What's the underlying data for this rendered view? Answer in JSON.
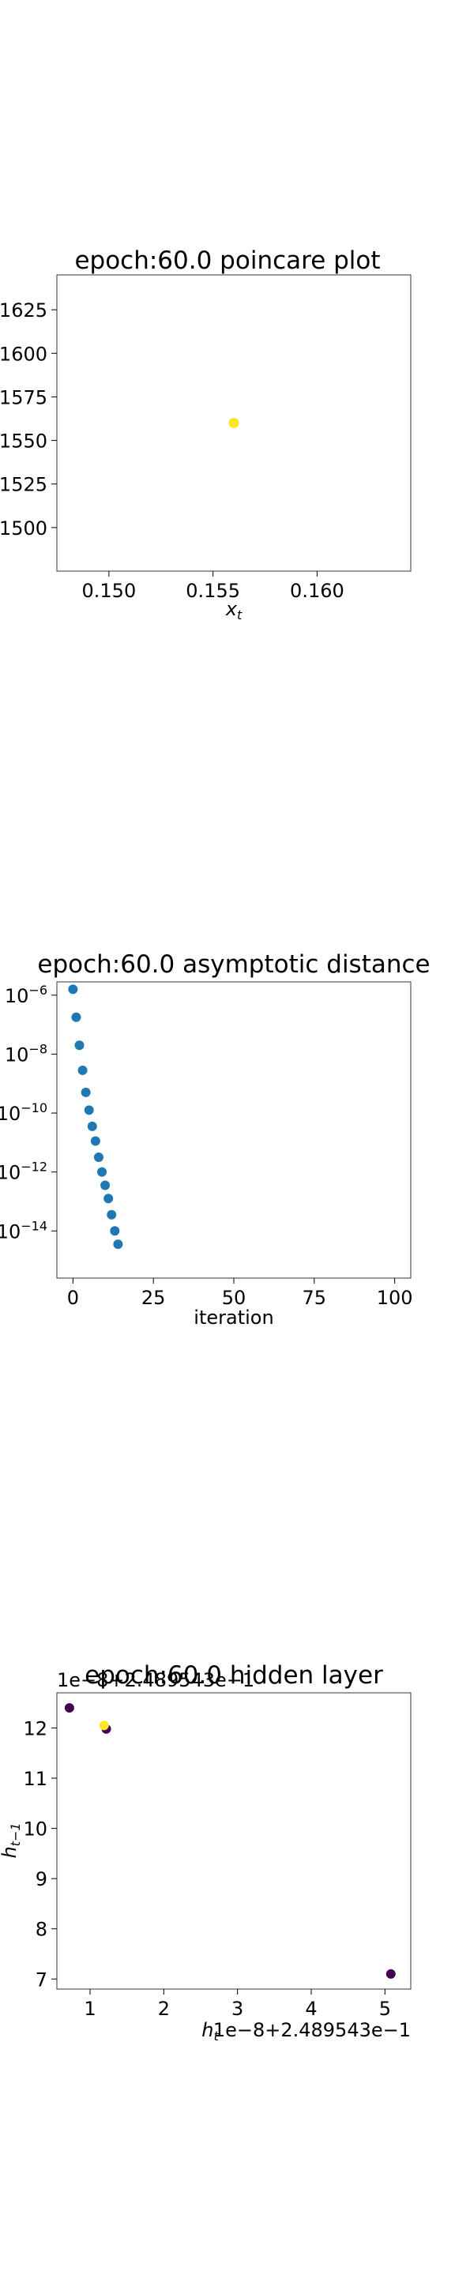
{
  "chart_data": [
    {
      "type": "scatter",
      "title": "epoch:60.0 poincare plot",
      "xlabel": "x_t",
      "ylabel": "",
      "xlim": [
        0.1475,
        0.1645
      ],
      "ylim": [
        0.1475,
        0.1645
      ],
      "xticks": [
        0.15,
        0.155,
        0.16
      ],
      "xtick_labels": [
        "0.150",
        "0.155",
        "0.160"
      ],
      "yticks": [
        0.15,
        0.1525,
        0.155,
        0.1575,
        0.16,
        0.1625
      ],
      "ytick_labels": [
        "1500",
        "1525",
        "1550",
        "1575",
        "1600",
        "1625"
      ],
      "ytick_labels_clipped": true,
      "points": [
        {
          "x": 0.156,
          "y": 0.156,
          "color": "#fde725"
        }
      ]
    },
    {
      "type": "scatter",
      "title": "epoch:60.0 asymptotic distance",
      "xlabel": "iteration",
      "ylabel": "",
      "yscale": "log",
      "xlim": [
        -5,
        105
      ],
      "ylim_log10": [
        -15.6,
        -5.55
      ],
      "xticks": [
        0,
        25,
        50,
        75,
        100
      ],
      "xtick_labels": [
        "0",
        "25",
        "50",
        "75",
        "100"
      ],
      "yticks_log10": [
        -6,
        -8,
        -10,
        -12,
        -14
      ],
      "ytick_labels": [
        "10−6",
        "10−8",
        "10−10",
        "10−12",
        "10−14"
      ],
      "ytick_labels_clipped": true,
      "color": "#1f77b4",
      "x": [
        0,
        1,
        2,
        3,
        4,
        5,
        6,
        7,
        8,
        9,
        10,
        11,
        12,
        13,
        14
      ],
      "log10_y": [
        -5.8,
        -6.75,
        -7.7,
        -8.55,
        -9.3,
        -9.9,
        -10.45,
        -10.95,
        -11.5,
        -12.0,
        -12.45,
        -12.9,
        -13.45,
        -14.0,
        -14.45
      ]
    },
    {
      "type": "scatter",
      "title": "epoch:60.0 hidden layer",
      "xlabel": "h_t",
      "ylabel": "h_{t−1}",
      "x_offset_text": "1e−8+2.489543e−1",
      "y_offset_text": "1e−8+2.489543e−1",
      "xlim": [
        0.55,
        5.35
      ],
      "ylim": [
        6.8,
        12.7
      ],
      "xticks": [
        1,
        2,
        3,
        4,
        5
      ],
      "xtick_labels": [
        "1",
        "2",
        "3",
        "4",
        "5"
      ],
      "yticks": [
        7,
        8,
        9,
        10,
        11,
        12
      ],
      "ytick_labels": [
        "7",
        "8",
        "9",
        "10",
        "11",
        "12"
      ],
      "points": [
        {
          "x": 0.72,
          "y": 12.4,
          "color": "#440154"
        },
        {
          "x": 1.22,
          "y": 11.98,
          "color": "#440154"
        },
        {
          "x": 1.19,
          "y": 12.05,
          "color": "#fde725"
        },
        {
          "x": 5.08,
          "y": 7.1,
          "color": "#440154"
        }
      ]
    }
  ]
}
